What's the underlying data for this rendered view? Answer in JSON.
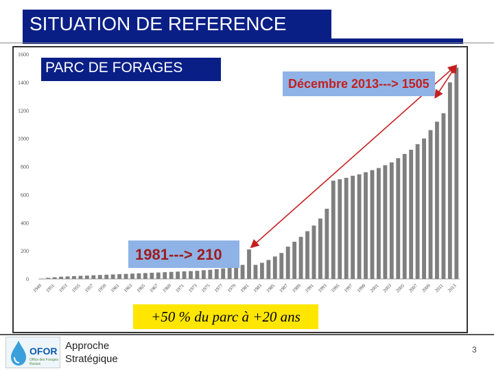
{
  "slide": {
    "title": "SITUATION DE REFERENCE",
    "subtitle": "PARC DE FORAGES",
    "annotation_dec": "Décembre 2013---> 1505",
    "annotation_1981": "1981---> 210",
    "annotation_growth": "+50 % du parc à +20 ans",
    "footer_line1": "Approche",
    "footer_line2": "Stratégique",
    "page_number": "3",
    "logo_text": "OFOR",
    "logo_sub": "Office des Forages Ruraux"
  },
  "colors": {
    "title_bg": "#0a1f86",
    "bar": "#7f7f7f",
    "arrow": "#c41f1f",
    "annotation_bg": "#8fb3e6",
    "highlight": "#ffe600"
  },
  "chart_data": {
    "type": "bar",
    "title": "",
    "xlabel": "",
    "ylabel": "",
    "ylim": [
      0,
      1600
    ],
    "yticks": [
      "0",
      "200",
      "400",
      "600",
      "800",
      "1000",
      "1200",
      "1400",
      "1600"
    ],
    "grid": false,
    "x": [
      1949,
      1950,
      1951,
      1952,
      1953,
      1954,
      1955,
      1956,
      1957,
      1958,
      1959,
      1960,
      1961,
      1962,
      1963,
      1964,
      1965,
      1966,
      1967,
      1968,
      1969,
      1970,
      1971,
      1972,
      1973,
      1974,
      1975,
      1976,
      1977,
      1978,
      1979,
      1980,
      1981,
      1982,
      1983,
      1984,
      1985,
      1986,
      1987,
      1988,
      1989,
      1990,
      1991,
      1992,
      1993,
      1994,
      1995,
      1996,
      1997,
      1998,
      1999,
      2000,
      2001,
      2002,
      2003,
      2004,
      2005,
      2006,
      2007,
      2008,
      2009,
      2010,
      2011,
      2012,
      2013
    ],
    "xtick_labels": [
      "1949",
      "1951",
      "1953",
      "1955",
      "1957",
      "1959",
      "1961",
      "1963",
      "1965",
      "1967",
      "1969",
      "1971",
      "1973",
      "1975",
      "1977",
      "1979",
      "1981",
      "1983",
      "1985",
      "1987",
      "1989",
      "1991",
      "1993",
      "1995",
      "1997",
      "1999",
      "2001",
      "2003",
      "2005",
      "2007",
      "2009",
      "2011",
      "2013"
    ],
    "values": [
      2,
      8,
      12,
      16,
      18,
      20,
      22,
      24,
      26,
      28,
      30,
      32,
      34,
      36,
      38,
      40,
      42,
      44,
      46,
      48,
      50,
      52,
      54,
      56,
      58,
      62,
      65,
      70,
      75,
      80,
      90,
      100,
      210,
      100,
      115,
      135,
      160,
      185,
      230,
      265,
      300,
      340,
      380,
      430,
      500,
      700,
      710,
      720,
      735,
      745,
      760,
      775,
      790,
      810,
      830,
      860,
      890,
      920,
      960,
      1000,
      1060,
      1120,
      1180,
      1400,
      1505
    ]
  }
}
